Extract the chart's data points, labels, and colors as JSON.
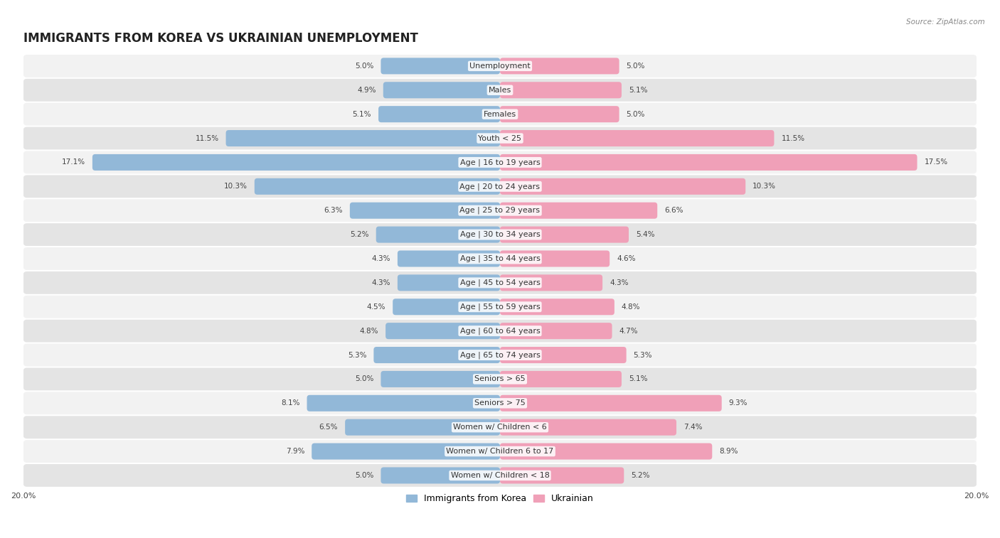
{
  "title": "IMMIGRANTS FROM KOREA VS UKRAINIAN UNEMPLOYMENT",
  "source": "Source: ZipAtlas.com",
  "categories": [
    "Unemployment",
    "Males",
    "Females",
    "Youth < 25",
    "Age | 16 to 19 years",
    "Age | 20 to 24 years",
    "Age | 25 to 29 years",
    "Age | 30 to 34 years",
    "Age | 35 to 44 years",
    "Age | 45 to 54 years",
    "Age | 55 to 59 years",
    "Age | 60 to 64 years",
    "Age | 65 to 74 years",
    "Seniors > 65",
    "Seniors > 75",
    "Women w/ Children < 6",
    "Women w/ Children 6 to 17",
    "Women w/ Children < 18"
  ],
  "korea_values": [
    5.0,
    4.9,
    5.1,
    11.5,
    17.1,
    10.3,
    6.3,
    5.2,
    4.3,
    4.3,
    4.5,
    4.8,
    5.3,
    5.0,
    8.1,
    6.5,
    7.9,
    5.0
  ],
  "ukraine_values": [
    5.0,
    5.1,
    5.0,
    11.5,
    17.5,
    10.3,
    6.6,
    5.4,
    4.6,
    4.3,
    4.8,
    4.7,
    5.3,
    5.1,
    9.3,
    7.4,
    8.9,
    5.2
  ],
  "korea_color": "#92b8d8",
  "ukraine_color": "#f0a0b8",
  "axis_max": 20.0,
  "bar_height": 0.68,
  "background_color": "#ffffff",
  "row_color_light": "#f2f2f2",
  "row_color_dark": "#e4e4e4",
  "title_fontsize": 12,
  "label_fontsize": 8,
  "value_fontsize": 7.5,
  "legend_fontsize": 9
}
